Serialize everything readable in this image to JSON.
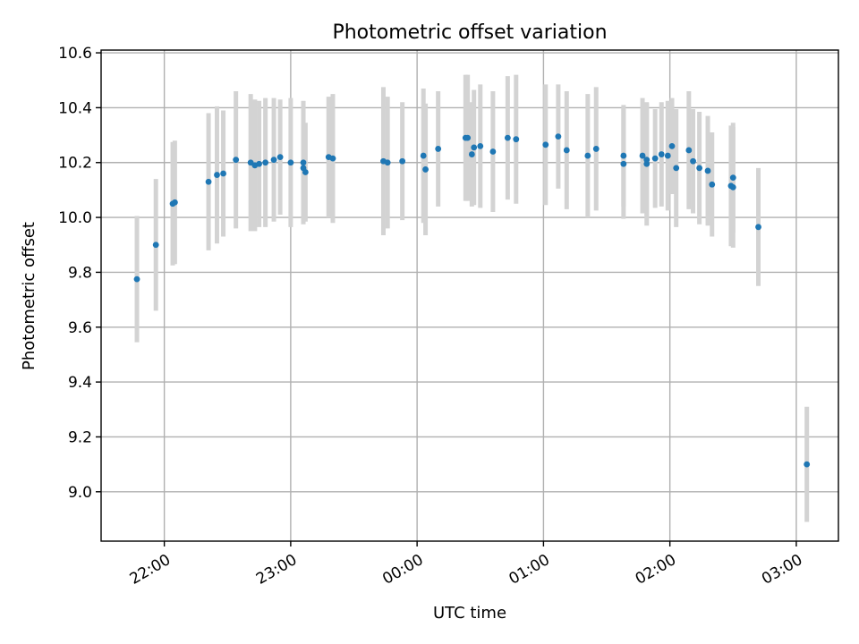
{
  "chart_data": {
    "type": "scatter",
    "title": "Photometric offset variation",
    "xlabel": "UTC time",
    "ylabel": "Photometric offset",
    "x_is_time": true,
    "xlim": [
      "21:30",
      "03:20"
    ],
    "ylim": [
      8.82,
      10.61
    ],
    "grid": true,
    "xticks": [
      "22:00",
      "23:00",
      "00:00",
      "01:00",
      "02:00",
      "03:00"
    ],
    "yticks": [
      9.0,
      9.2,
      9.4,
      9.6,
      9.8,
      10.0,
      10.2,
      10.4,
      10.6
    ],
    "series": [
      {
        "points": [
          [
            "21:47",
            9.775,
            0.23
          ],
          [
            "21:56",
            9.9,
            0.24
          ],
          [
            "22:04",
            10.05,
            0.225
          ],
          [
            "22:05",
            10.055,
            0.225
          ],
          [
            "22:21",
            10.13,
            0.25
          ],
          [
            "22:25",
            10.155,
            0.25
          ],
          [
            "22:28",
            10.16,
            0.23
          ],
          [
            "22:34",
            10.21,
            0.25
          ],
          [
            "22:41",
            10.2,
            0.25
          ],
          [
            "22:43",
            10.19,
            0.24
          ],
          [
            "22:45",
            10.195,
            0.23
          ],
          [
            "22:48",
            10.2,
            0.235
          ],
          [
            "22:52",
            10.21,
            0.225
          ],
          [
            "22:55",
            10.22,
            0.21
          ],
          [
            "23:00",
            10.2,
            0.235
          ],
          [
            "23:06",
            10.2,
            0.225
          ],
          [
            "23:06",
            10.18,
            0.16
          ],
          [
            "23:07",
            10.165,
            0.18
          ],
          [
            "23:18",
            10.22,
            0.22
          ],
          [
            "23:20",
            10.215,
            0.235
          ],
          [
            "23:44",
            10.205,
            0.27
          ],
          [
            "23:46",
            10.2,
            0.24
          ],
          [
            "23:53",
            10.205,
            0.215
          ],
          [
            "00:03",
            10.225,
            0.245
          ],
          [
            "00:04",
            10.175,
            0.24
          ],
          [
            "00:10",
            10.25,
            0.21
          ],
          [
            "00:23",
            10.29,
            0.23
          ],
          [
            "00:24",
            10.29,
            0.23
          ],
          [
            "00:26",
            10.23,
            0.19
          ],
          [
            "00:27",
            10.255,
            0.21
          ],
          [
            "00:30",
            10.26,
            0.225
          ],
          [
            "00:36",
            10.24,
            0.22
          ],
          [
            "00:43",
            10.29,
            0.225
          ],
          [
            "00:47",
            10.285,
            0.235
          ],
          [
            "01:01",
            10.265,
            0.22
          ],
          [
            "01:07",
            10.295,
            0.19
          ],
          [
            "01:11",
            10.245,
            0.215
          ],
          [
            "01:21",
            10.225,
            0.225
          ],
          [
            "01:25",
            10.25,
            0.225
          ],
          [
            "01:38",
            10.225,
            0.185
          ],
          [
            "01:38",
            10.195,
            0.2
          ],
          [
            "01:47",
            10.225,
            0.21
          ],
          [
            "01:49",
            10.21,
            0.205
          ],
          [
            "01:49",
            10.195,
            0.225
          ],
          [
            "01:53",
            10.215,
            0.18
          ],
          [
            "01:56",
            10.23,
            0.19
          ],
          [
            "01:59",
            10.225,
            0.2
          ],
          [
            "02:01",
            10.26,
            0.175
          ],
          [
            "02:03",
            10.18,
            0.215
          ],
          [
            "02:09",
            10.245,
            0.215
          ],
          [
            "02:11",
            10.205,
            0.19
          ],
          [
            "02:14",
            10.18,
            0.205
          ],
          [
            "02:18",
            10.17,
            0.2
          ],
          [
            "02:20",
            10.12,
            0.19
          ],
          [
            "02:29",
            10.115,
            0.22
          ],
          [
            "02:30",
            10.145,
            0.2
          ],
          [
            "02:30",
            10.11,
            0.22
          ],
          [
            "02:42",
            9.965,
            0.215
          ],
          [
            "03:05",
            9.1,
            0.21
          ]
        ]
      }
    ]
  }
}
